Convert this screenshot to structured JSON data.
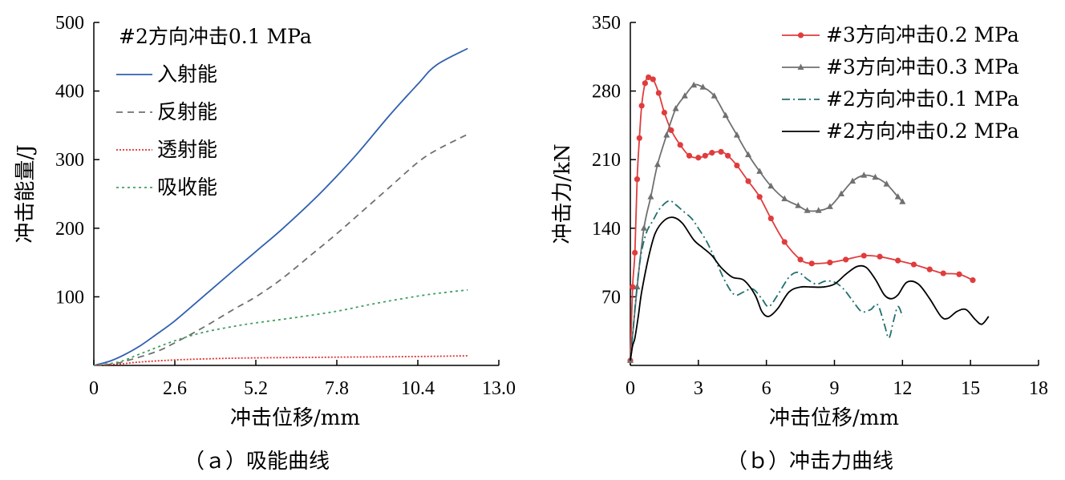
{
  "chart_data": [
    {
      "type": "line",
      "caption": "（ａ）吸能曲线",
      "xlabel": "冲击位移/mm",
      "ylabel": "冲击能量/J",
      "xlim": [
        0,
        13.0
      ],
      "ylim": [
        0,
        500
      ],
      "xticks": [
        0,
        2.6,
        5.2,
        7.8,
        10.4,
        13.0
      ],
      "xtick_labels": [
        "0",
        "2.6",
        "5.2",
        "7.8",
        "10.4",
        "13.0"
      ],
      "yticks": [
        100,
        200,
        300,
        400,
        500
      ],
      "ytick_labels": [
        "100",
        "200",
        "300",
        "400",
        "500"
      ],
      "legend_title": "#2方向冲击0.1 MPa",
      "legend_position": "top-left",
      "grid": false,
      "series": [
        {
          "name": "入射能",
          "color": "#3060b0",
          "dash": "solid",
          "x": [
            0,
            0.5,
            1.0,
            1.5,
            2.0,
            2.6,
            3.5,
            4.5,
            5.2,
            6.0,
            7.0,
            7.8,
            8.5,
            9.5,
            10.4,
            11.0,
            12.0
          ],
          "y": [
            0,
            6,
            16,
            29,
            45,
            65,
            100,
            139,
            166,
            197,
            239,
            276,
            311,
            365,
            410,
            438,
            462
          ]
        },
        {
          "name": "反射能",
          "color": "#707070",
          "dash": "8,6",
          "x": [
            0,
            0.6,
            1.0,
            2.0,
            2.6,
            3.5,
            4.5,
            5.2,
            6.0,
            7.0,
            7.8,
            8.5,
            9.5,
            10.4,
            11.0,
            12.0
          ],
          "y": [
            0,
            2,
            6,
            20,
            33,
            55,
            82,
            100,
            125,
            162,
            192,
            220,
            260,
            296,
            314,
            337
          ]
        },
        {
          "name": "透射能",
          "color": "#e03030",
          "dash": "2,2",
          "x": [
            0,
            0.8,
            1.5,
            2.6,
            4.0,
            5.2,
            7.8,
            10.4,
            12.0
          ],
          "y": [
            0,
            2,
            5,
            8,
            10,
            11,
            12,
            13,
            14
          ]
        },
        {
          "name": "吸收能",
          "color": "#40a060",
          "dash": "3,4",
          "x": [
            0,
            0.8,
            1.5,
            2.6,
            3.5,
            4.5,
            5.2,
            6.5,
            7.8,
            9.0,
            10.4,
            11.2,
            12.0
          ],
          "y": [
            0,
            5,
            17,
            36,
            48,
            57,
            62,
            70,
            79,
            90,
            101,
            106,
            110
          ]
        }
      ]
    },
    {
      "type": "line",
      "caption": "（ｂ）冲击力曲线",
      "xlabel": "冲击位移/mm",
      "ylabel": "冲击力/kN",
      "xlim": [
        0,
        18
      ],
      "ylim": [
        0,
        350
      ],
      "xticks": [
        0,
        3,
        6,
        9,
        12,
        15,
        18
      ],
      "xtick_labels": [
        "0",
        "3",
        "6",
        "9",
        "12",
        "15",
        "18"
      ],
      "yticks": [
        70,
        140,
        210,
        280,
        350
      ],
      "ytick_labels": [
        "70",
        "140",
        "210",
        "280",
        "350"
      ],
      "legend_position": "top-right",
      "grid": false,
      "series": [
        {
          "name": "#3方向冲击0.2 MPa",
          "color": "#e03c3c",
          "dash": "solid",
          "marker": "circle",
          "x": [
            0,
            0.1,
            0.2,
            0.3,
            0.4,
            0.5,
            0.65,
            0.8,
            1.0,
            1.25,
            1.5,
            1.8,
            2.2,
            2.6,
            3.0,
            3.3,
            3.6,
            4.0,
            4.3,
            4.7,
            5.2,
            5.7,
            6.2,
            6.8,
            7.5,
            8.0,
            8.8,
            9.5,
            10.3,
            11.0,
            11.8,
            12.5,
            13.2,
            13.8,
            14.5,
            15.1
          ],
          "y": [
            5,
            80,
            115,
            190,
            232,
            265,
            288,
            294,
            292,
            278,
            258,
            240,
            225,
            214,
            212,
            214,
            217,
            218,
            214,
            204,
            188,
            172,
            150,
            126,
            108,
            104,
            105,
            108,
            112,
            111,
            107,
            103,
            98,
            94,
            93,
            87
          ]
        },
        {
          "name": "#3方向冲击0.3 MPa",
          "color": "#707070",
          "dash": "solid",
          "marker": "triangle",
          "x": [
            0,
            0.3,
            0.6,
            0.9,
            1.2,
            1.6,
            2.0,
            2.4,
            2.8,
            3.2,
            3.7,
            4.2,
            4.7,
            5.2,
            5.7,
            6.2,
            6.8,
            7.4,
            7.8,
            8.3,
            8.8,
            9.3,
            9.8,
            10.3,
            10.8,
            11.3,
            11.8,
            12.0
          ],
          "y": [
            5,
            80,
            140,
            172,
            205,
            235,
            262,
            275,
            286,
            284,
            275,
            255,
            235,
            215,
            198,
            183,
            170,
            163,
            158,
            158,
            162,
            175,
            188,
            194,
            192,
            185,
            172,
            167
          ]
        },
        {
          "name": "#2方向冲击0.1 MPa",
          "color": "#207070",
          "dash": "10,4,2,4",
          "marker": "none",
          "x": [
            0,
            0.1,
            0.25,
            0.45,
            0.7,
            1.0,
            1.3,
            1.7,
            2.0,
            2.3,
            2.7,
            3.0,
            3.4,
            3.8,
            4.2,
            4.6,
            5.0,
            5.4,
            5.8,
            6.1,
            6.5,
            7.0,
            7.4,
            7.8,
            8.2,
            8.6,
            9.0,
            9.4,
            9.8,
            10.2,
            10.6,
            10.9,
            11.2,
            11.4,
            11.6,
            11.8,
            12.0
          ],
          "y": [
            5,
            30,
            70,
            110,
            135,
            148,
            160,
            168,
            164,
            158,
            150,
            140,
            125,
            105,
            85,
            72,
            75,
            78,
            68,
            60,
            72,
            90,
            95,
            88,
            83,
            86,
            85,
            78,
            66,
            55,
            57,
            62,
            42,
            28,
            45,
            60,
            50
          ]
        },
        {
          "name": "#2方向冲击0.2 MPa",
          "color": "#000000",
          "dash": "solid",
          "marker": "none",
          "x": [
            0,
            0.1,
            0.2,
            0.35,
            0.5,
            0.8,
            1.1,
            1.5,
            1.9,
            2.3,
            2.8,
            3.2,
            3.6,
            4.0,
            4.5,
            5.0,
            5.5,
            5.8,
            6.1,
            6.5,
            7.0,
            7.5,
            8.0,
            8.5,
            9.0,
            9.5,
            10.0,
            10.4,
            10.8,
            11.2,
            11.5,
            11.8,
            12.2,
            12.7,
            13.2,
            13.7,
            14.0,
            14.4,
            14.8,
            15.2,
            15.5,
            15.8
          ],
          "y": [
            5,
            20,
            28,
            50,
            75,
            110,
            135,
            148,
            151,
            145,
            128,
            120,
            112,
            100,
            90,
            87,
            72,
            55,
            50,
            58,
            75,
            80,
            80,
            80,
            83,
            93,
            101,
            100,
            88,
            72,
            68,
            72,
            85,
            83,
            68,
            50,
            48,
            55,
            57,
            47,
            42,
            50
          ]
        }
      ]
    }
  ]
}
